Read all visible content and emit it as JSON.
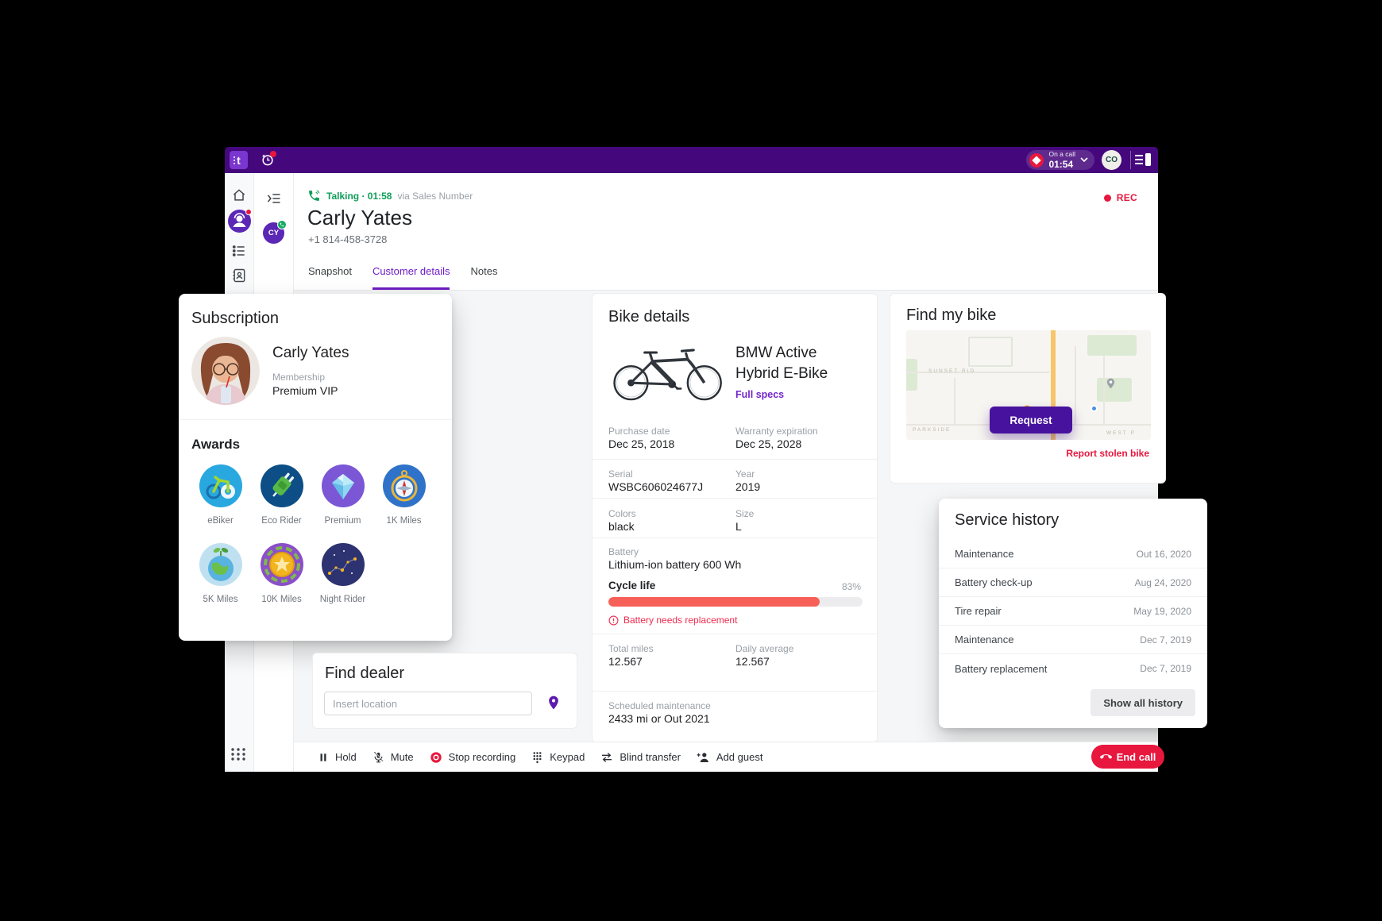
{
  "topbar": {
    "logo_text": "t",
    "status_label": "On a call",
    "status_time": "01:54",
    "user_initials": "CO"
  },
  "header": {
    "call_status": "Talking · 01:58",
    "via": "via Sales Number",
    "name": "Carly Yates",
    "phone": "+1 814-458-3728",
    "rec": "REC",
    "tabs": [
      {
        "label": "Snapshot"
      },
      {
        "label": "Customer details"
      },
      {
        "label": "Notes"
      }
    ]
  },
  "subscription": {
    "title": "Subscription",
    "name": "Carly Yates",
    "membership_label": "Membership",
    "membership_value": "Premium VIP",
    "awards_title": "Awards",
    "awards": [
      {
        "label": "eBiker"
      },
      {
        "label": "Eco Rider"
      },
      {
        "label": "Premium"
      },
      {
        "label": "1K Miles"
      },
      {
        "label": "5K Miles"
      },
      {
        "label": "10K Miles"
      },
      {
        "label": "Night Rider"
      }
    ]
  },
  "bike": {
    "title": "Bike details",
    "model_line1": "BMW Active",
    "model_line2": "Hybrid E-Bike",
    "full_specs": "Full specs",
    "purchase_date_label": "Purchase date",
    "purchase_date": "Dec 25, 2018",
    "warranty_label": "Warranty expiration",
    "warranty": "Dec 25, 2028",
    "serial_label": "Serial",
    "serial": "WSBC606024677J",
    "year_label": "Year",
    "year": "2019",
    "colors_label": "Colors",
    "colors_value": "black",
    "size_label": "Size",
    "size_value": "L",
    "battery_label": "Battery",
    "battery_value": "Lithium-ion battery 600 Wh",
    "cycle_life_label": "Cycle life",
    "cycle_life_pct": 83,
    "cycle_life_pct_label": "83%",
    "warning": "Battery needs replacement",
    "total_miles_label": "Total miles",
    "total_miles": "12.567",
    "daily_avg_label": "Daily average",
    "daily_avg": "12.567",
    "sched_label": "Scheduled maintenance",
    "sched_value": "2433 mi or Out 2021"
  },
  "find_my_bike": {
    "title": "Find my bike",
    "request": "Request",
    "report": "Report stolen bike",
    "streets": [
      "SUNSET RID",
      "PARKSIDE",
      "WEST P"
    ]
  },
  "service_history": {
    "title": "Service history",
    "rows": [
      {
        "label": "Maintenance",
        "date": "Out 16, 2020"
      },
      {
        "label": "Battery check-up",
        "date": "Aug 24, 2020"
      },
      {
        "label": "Tire repair",
        "date": "May 19, 2020"
      },
      {
        "label": "Maintenance",
        "date": "Dec 7, 2019"
      },
      {
        "label": "Battery replacement",
        "date": "Dec 7, 2019"
      }
    ],
    "show_all": "Show all history"
  },
  "find_dealer": {
    "title": "Find dealer",
    "placeholder": "Insert location"
  },
  "toolbar": {
    "buttons": [
      {
        "label": "Hold"
      },
      {
        "label": "Mute"
      },
      {
        "label": "Stop recording"
      },
      {
        "label": "Keypad"
      },
      {
        "label": "Blind transfer"
      },
      {
        "label": "Add guest"
      }
    ],
    "end_call": "End call"
  },
  "colors": {
    "topbar_purple": "#45087c",
    "accent_purple": "#6d1cc3",
    "button_purple": "#47129e",
    "alert_red": "#e8173d",
    "progress_coral": "#f66058",
    "talking_green": "#0f9d58"
  }
}
